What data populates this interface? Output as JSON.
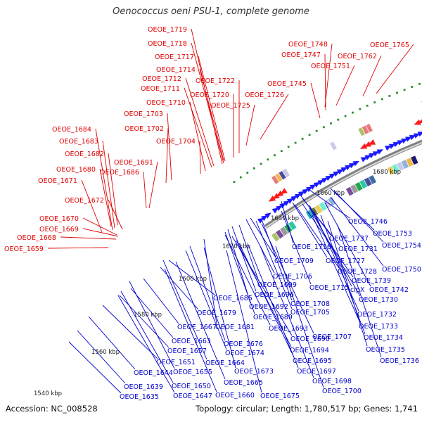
{
  "title": "Oenococcus oeni PSU-1, complete genome",
  "footer": {
    "accession": "Accession: NC_008528",
    "topology": "Topology: circular; Length: 1,780,517 bp; Genes: 1,741"
  },
  "colors": {
    "forward_label": "#e00000",
    "reverse_label": "#0000cc",
    "forward_gene": "#ff1a1a",
    "reverse_gene": "#1a1aff",
    "backbone": "#9a9a9a",
    "gc_dot": "#2e8b2e"
  },
  "ticks": [
    "1540 kbp",
    "1560 kbp",
    "1580 kbp",
    "1600 kbp",
    "1620 kbp",
    "1640 kbp",
    "1660 kbp",
    "1680 kbp"
  ],
  "forward_labels": [
    "OEOE_1719",
    "OEOE_1718",
    "OEOE_1717",
    "OEOE_1714",
    "OEOE_1722",
    "OEOE_1712",
    "OEOE_1711",
    "OEOE_1720",
    "OEOE_1710",
    "OEOE_1725",
    "OEOE_1726",
    "OEOE_1703",
    "OEOE_1702",
    "OEOE_1704",
    "OEOE_1684",
    "OEOE_1683",
    "OEOE_1682",
    "OEOE_1691",
    "OEOE_1680",
    "OEOE_1686",
    "OEOE_1671",
    "OEOE_1672",
    "OEOE_1670",
    "OEOE_1669",
    "OEOE_1668",
    "OEOE_1659",
    "OEOE_1748",
    "OEOE_1747",
    "OEOE_1751",
    "OEOE_1762",
    "OEOE_1765",
    "OEOE_1745"
  ],
  "reverse_labels": [
    "OEOE_1746",
    "OEOE_1737",
    "OEOE_1753",
    "OEOE_1716",
    "OEOE_1731",
    "OEOE_1754",
    "OEOE_1727",
    "OEOE_1709",
    "OEOE_1728",
    "OEOE_1750",
    "OEOE_1739",
    "OEOE_1706",
    "OEOE_1715",
    "clpX",
    "OEOE_1742",
    "OEOE_1699",
    "OEOE_1730",
    "OEOE_1685",
    "OEOE_1696",
    "OEOE_1708",
    "OEOE_1692",
    "OEOE_1705",
    "OEOE_1732",
    "OEOE_1679",
    "OEOE_1689",
    "OEOE_1667",
    "OEOE_1681",
    "OEOE_1693",
    "OEOE_1733",
    "OEOE_1707",
    "OEOE_1734",
    "OEOE_1663",
    "OEOE_1676",
    "OEOE_1690",
    "OEOE_1657",
    "OEOE_1674",
    "OEOE_1694",
    "OEOE_1735",
    "OEOE_1651",
    "OEOE_1664",
    "OEOE_1695",
    "OEOE_1736",
    "OEOE_1644",
    "OEOE_1655",
    "OEOE_1673",
    "OEOE_1697",
    "OEOE_1639",
    "OEOE_1650",
    "OEOE_1665",
    "OEOE_1698",
    "OEOE_1635",
    "OEOE_1647",
    "OEOE_1660",
    "OEOE_1675",
    "OEOE_1700"
  ]
}
